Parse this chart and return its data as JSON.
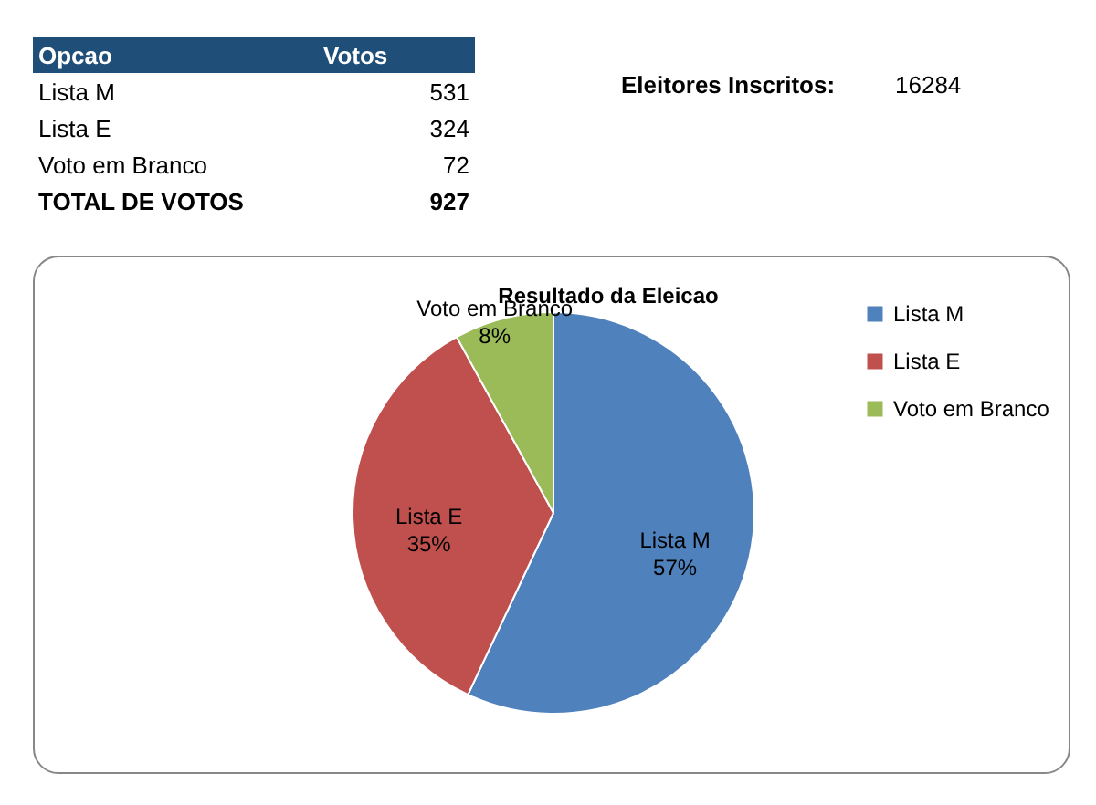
{
  "chart_data": {
    "type": "pie",
    "title": "Resultado da Eleicao",
    "categories": [
      "Lista M",
      "Lista E",
      "Voto em Branco"
    ],
    "values": [
      57,
      35,
      8
    ],
    "colors": [
      "#4f81bd",
      "#c0504d",
      "#9bbb59"
    ],
    "value_labels": [
      "57%",
      "35%",
      "8%"
    ],
    "legend": "right",
    "annotations": [
      "Opcao",
      "Votos",
      "TOTAL DE VOTOS",
      "927",
      "Eleitores Inscritos:",
      "16284",
      "531",
      "324",
      "72"
    ]
  }
}
